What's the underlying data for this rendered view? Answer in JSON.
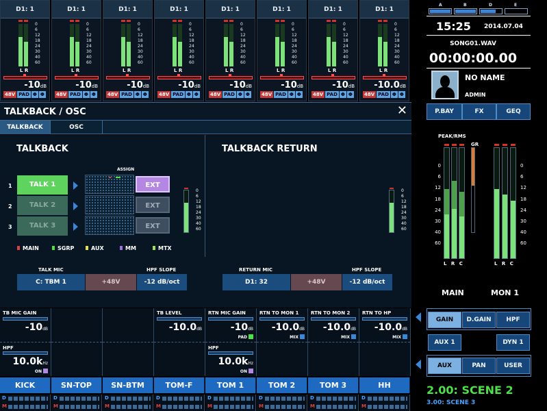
{
  "channels": [
    {
      "name": "D1: 1",
      "db": "-10",
      "unit": "dB",
      "btn48": "48V",
      "pad": "PAD",
      "phase": "Φ",
      "link": "Φ"
    },
    {
      "name": "D1: 1",
      "db": "-10",
      "unit": "dB",
      "btn48": "48V",
      "pad": "PAD",
      "phase": "Φ",
      "link": "Φ"
    },
    {
      "name": "D1: 1",
      "db": "-10",
      "unit": "dB",
      "btn48": "48V",
      "pad": "PAD",
      "phase": "Φ",
      "link": "Φ"
    },
    {
      "name": "D1: 1",
      "db": "-10",
      "unit": "dB",
      "btn48": "48V",
      "pad": "PAD",
      "phase": "Φ",
      "link": "Φ"
    },
    {
      "name": "D1: 1",
      "db": "-10",
      "unit": "dB",
      "btn48": "48V",
      "pad": "PAD",
      "phase": "Φ",
      "link": "Φ"
    },
    {
      "name": "D1: 1",
      "db": "-10",
      "unit": "dB",
      "btn48": "48V",
      "pad": "PAD",
      "phase": "Φ",
      "link": "Φ"
    },
    {
      "name": "D1: 1",
      "db": "-10",
      "unit": "dB",
      "btn48": "48V",
      "pad": "PAD",
      "phase": "Φ",
      "link": "Φ"
    },
    {
      "name": "D1: 1",
      "db": "-10.0",
      "unit": "dB",
      "btn48": "48V",
      "pad": "PAD",
      "phase": "Φ",
      "link": "Φ"
    }
  ],
  "meter_scale": [
    "0",
    "6",
    "12",
    "18",
    "24",
    "30",
    "40",
    "60"
  ],
  "lr_label": "L R",
  "popup": {
    "title": "TALKBACK / OSC",
    "close": "✕",
    "tabs": [
      "TALKBACK",
      "OSC"
    ]
  },
  "talkback": {
    "title": "TALKBACK",
    "assign_label": "ASSIGN",
    "rows": [
      {
        "num": "1",
        "label": "TALK 1",
        "ext": "EXT",
        "active": true
      },
      {
        "num": "2",
        "label": "TALK 2",
        "ext": "EXT",
        "active": false
      },
      {
        "num": "3",
        "label": "TALK 3",
        "ext": "EXT",
        "active": false
      }
    ],
    "legend": [
      {
        "label": "MAIN",
        "color": "#e04040"
      },
      {
        "label": "SGRP",
        "color": "#4de04a"
      },
      {
        "label": "AUX",
        "color": "#e8e040"
      },
      {
        "label": "MM",
        "color": "#a070e0"
      },
      {
        "label": "MTX",
        "color": "#a0e060"
      }
    ],
    "mic_label": "TALK MIC",
    "mic_value": "C: TBM 1",
    "phantom": "+48V",
    "hpf_label": "HPF SLOPE",
    "hpf_value": "-12 dB/oct"
  },
  "talkback_return": {
    "title": "TALKBACK RETURN",
    "mic_label": "RETURN MIC",
    "mic_value": "D1: 32",
    "phantom": "+48V",
    "hpf_label": "HPF SLOPE",
    "hpf_value": "-12 dB/oct"
  },
  "params": {
    "tb_mic_gain": {
      "label": "TB MIC GAIN",
      "value": "-10",
      "unit": "dB"
    },
    "hpf": {
      "label": "HPF",
      "value": "10.0k",
      "unit": "Hz",
      "tag": "ON"
    },
    "tb_level": {
      "label": "TB LEVEL",
      "value": "-10.0",
      "unit": "dB"
    },
    "rtn_mic_gain": {
      "label": "RTN MIC GAIN",
      "value": "-10",
      "unit": "dB",
      "tag": "PAD"
    },
    "rtn_hpf": {
      "label": "HPF",
      "value": "10.0k",
      "unit": "Hz",
      "tag": "ON"
    },
    "rtn_mon1": {
      "label": "RTN TO MON 1",
      "value": "-10.0",
      "unit": "dB",
      "tag": "MIX"
    },
    "rtn_mon2": {
      "label": "RTN TO MON 2",
      "value": "-10.0",
      "unit": "dB",
      "tag": "MIX"
    },
    "rtn_hp": {
      "label": "RTN TO HP",
      "value": "-10.0",
      "unit": "dB",
      "tag": "MIX"
    }
  },
  "channel_names": [
    "KICK",
    "SN-TOP",
    "SN-BTM",
    "TOM-F",
    "TOM 1",
    "TOM 2",
    "TOM 3",
    "HH"
  ],
  "dm_labels": {
    "d": "D",
    "m": "M"
  },
  "right": {
    "banks": [
      {
        "label": "A",
        "level": 1.0
      },
      {
        "label": "B",
        "level": 1.0
      },
      {
        "label": "D",
        "level": 0.75
      },
      {
        "label": "E",
        "level": 0.0
      }
    ],
    "time": "15:25",
    "date": "2014.07.04",
    "song": "SONG01.WAV",
    "counter": "00:00:00.00",
    "user_name": "NO NAME",
    "user_role": "ADMIN",
    "top_tabs": [
      "P.BAY",
      "FX",
      "GEQ"
    ],
    "peak_rms": "PEAK/RMS",
    "gr": "GR",
    "lrc": "L R C",
    "bus_main": "MAIN",
    "bus_mon": "MON 1",
    "gain_tabs": [
      "GAIN",
      "D.GAIN",
      "HPF"
    ],
    "aux1": "AUX 1",
    "dyn1": "DYN 1",
    "mode_tabs": [
      "AUX",
      "PAN",
      "USER"
    ],
    "scene_main": "2.00: SCENE 2",
    "scene_sub": "3.00: SCENE 3",
    "accent": "#4de04a"
  }
}
